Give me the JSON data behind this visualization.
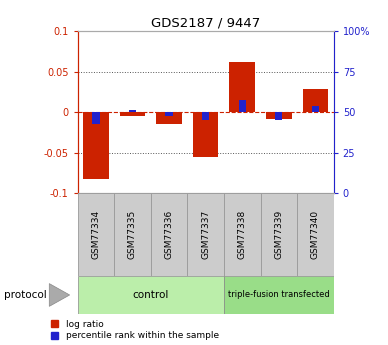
{
  "title": "GDS2187 / 9447",
  "samples": [
    "GSM77334",
    "GSM77335",
    "GSM77336",
    "GSM77337",
    "GSM77338",
    "GSM77339",
    "GSM77340"
  ],
  "log_ratio": [
    -0.082,
    -0.005,
    -0.015,
    -0.055,
    0.062,
    -0.008,
    0.028
  ],
  "percentile_rank": [
    -0.015,
    0.003,
    -0.005,
    -0.01,
    0.015,
    -0.01,
    0.008
  ],
  "ylim": [
    -0.1,
    0.1
  ],
  "log_ratio_color": "#cc2200",
  "percentile_color": "#2222cc",
  "zero_line_color": "#cc2200",
  "dotted_line_color": "#555555",
  "group_control_color": "#bbeeaa",
  "group_tf_color": "#99dd88",
  "sample_box_color": "#cccccc",
  "sample_box_edge": "#999999",
  "background_color": "#ffffff",
  "right_ytick_labels": [
    "0",
    "25",
    "50",
    "75",
    "100%"
  ],
  "right_ytick_vals": [
    -0.1,
    -0.05,
    0.0,
    0.05,
    0.1
  ],
  "left_ytick_labels": [
    "-0.1",
    "-0.05",
    "0",
    "0.05",
    "0.1"
  ],
  "left_ytick_vals": [
    -0.1,
    -0.05,
    0.0,
    0.05,
    0.1
  ]
}
